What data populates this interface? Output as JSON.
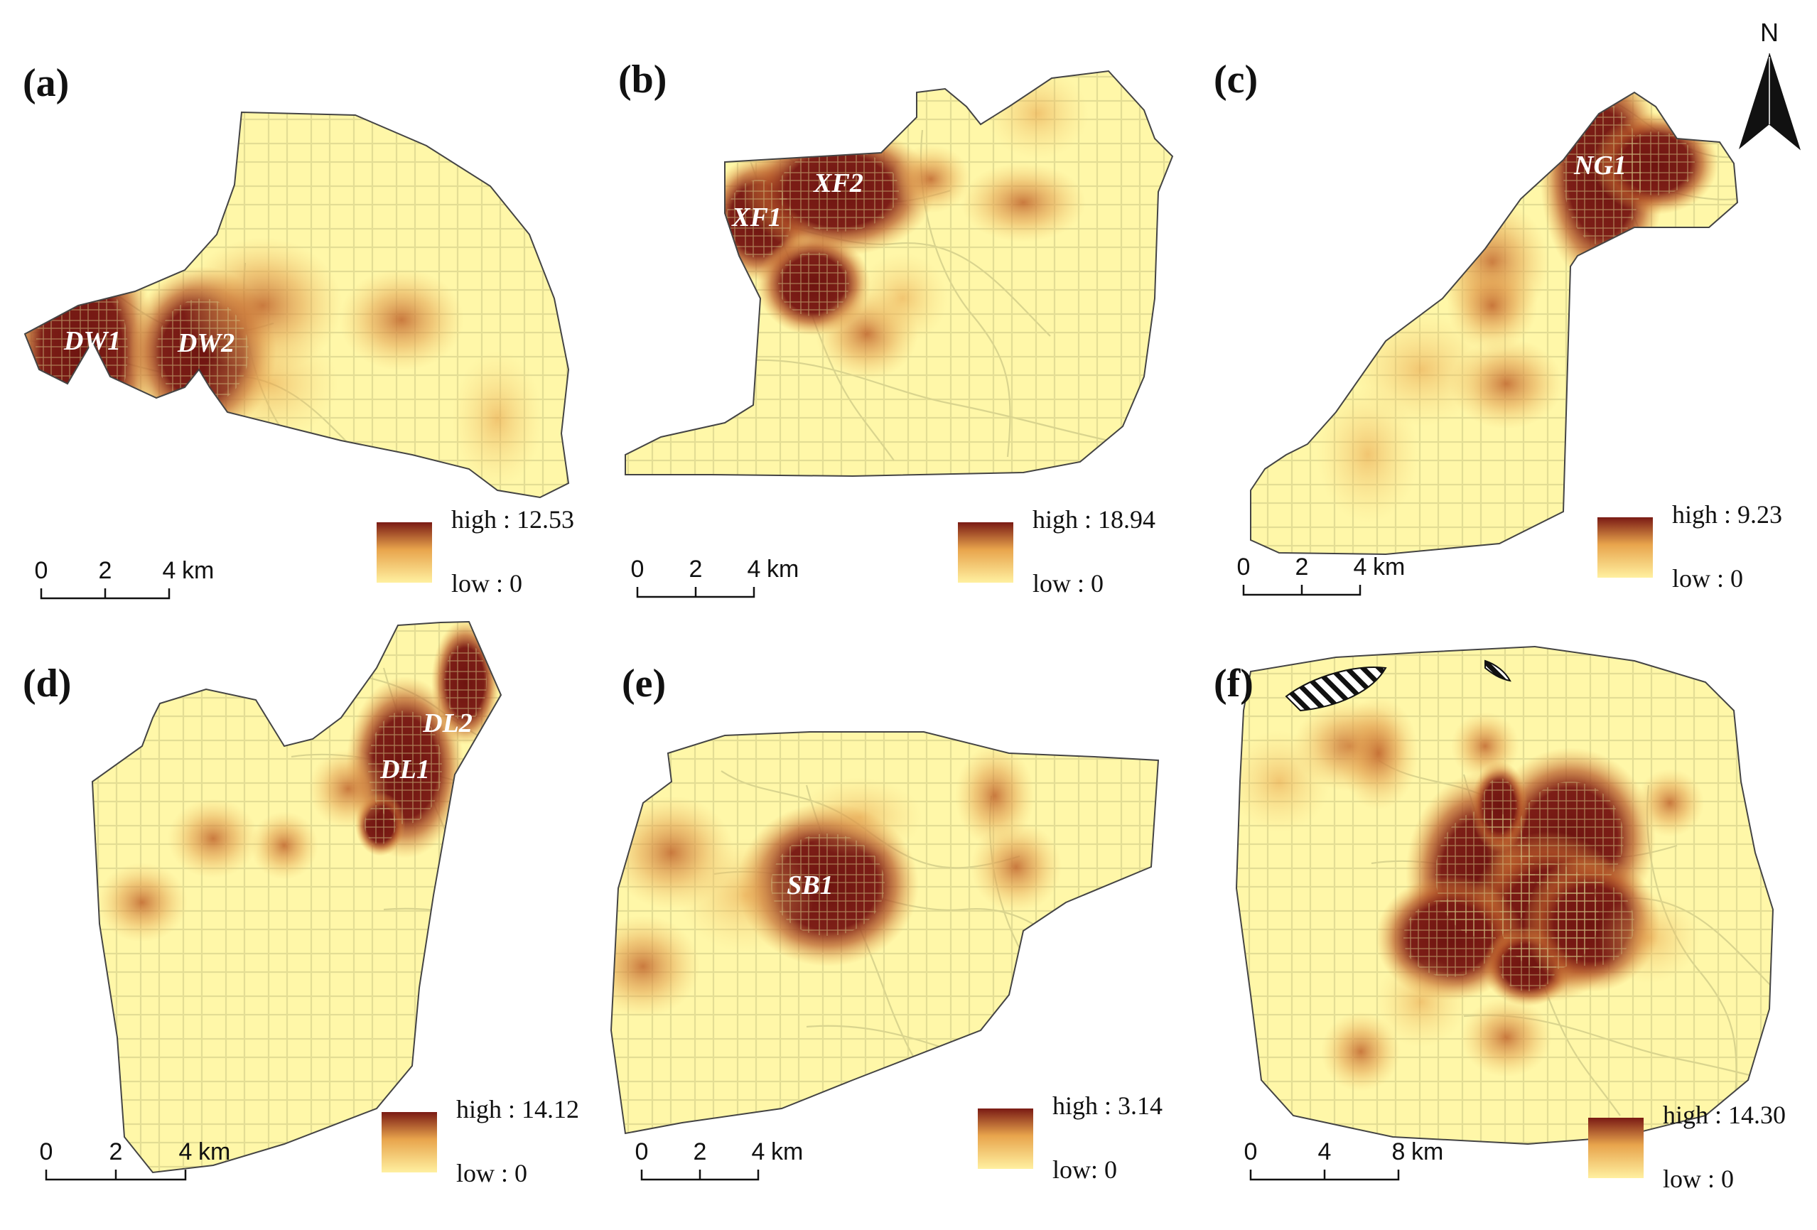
{
  "colors": {
    "background": "#fff7a8",
    "low": "#fff0a0",
    "mid": "#e8a44c",
    "high": "#7a1a14",
    "road": "#d9d48e",
    "outline": "#444444"
  },
  "north_arrow": {
    "label": "N",
    "icon": "north-arrow-icon"
  },
  "panels": [
    {
      "id": "a",
      "label": "(a)",
      "legend": {
        "high": "high : 12.53",
        "low": "low : 0"
      },
      "scale": {
        "ticks": [
          "0",
          "2",
          "4"
        ],
        "unit": "km"
      },
      "hotspots": [
        "DW1",
        "DW2"
      ]
    },
    {
      "id": "b",
      "label": "(b)",
      "legend": {
        "high": "high : 18.94",
        "low": "low : 0"
      },
      "scale": {
        "ticks": [
          "0",
          "2",
          "4"
        ],
        "unit": "km"
      },
      "hotspots": [
        "XF1",
        "XF2"
      ]
    },
    {
      "id": "c",
      "label": "(c)",
      "legend": {
        "high": "high : 9.23",
        "low": "low : 0"
      },
      "scale": {
        "ticks": [
          "0",
          "2",
          "4"
        ],
        "unit": "km"
      },
      "hotspots": [
        "NG1"
      ]
    },
    {
      "id": "d",
      "label": "(d)",
      "legend": {
        "high": "high : 14.12",
        "low": "low : 0"
      },
      "scale": {
        "ticks": [
          "0",
          "2",
          "4"
        ],
        "unit": "km"
      },
      "hotspots": [
        "DL1",
        "DL2"
      ]
    },
    {
      "id": "e",
      "label": "(e)",
      "legend": {
        "high": "high : 3.14",
        "low": "low: 0"
      },
      "scale": {
        "ticks": [
          "0",
          "2",
          "4"
        ],
        "unit": "km"
      },
      "hotspots": [
        "SB1"
      ]
    },
    {
      "id": "f",
      "label": "(f)",
      "legend": {
        "high": "high : 14.30",
        "low": "low : 0"
      },
      "scale": {
        "ticks": [
          "0",
          "4",
          "8"
        ],
        "unit": "km"
      },
      "hotspots": []
    }
  ]
}
